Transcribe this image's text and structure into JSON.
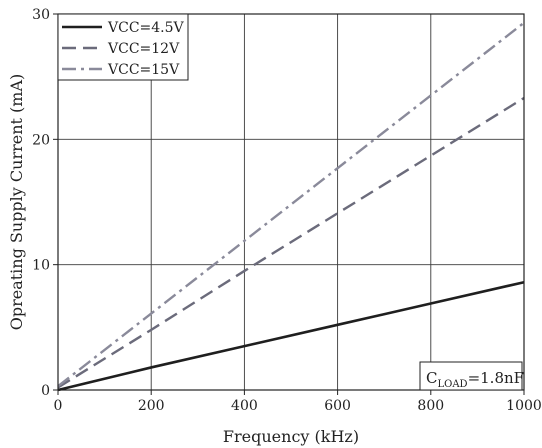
{
  "chart_data": {
    "type": "line",
    "title": "",
    "xlabel": "Frequency (kHz)",
    "ylabel": "Opreating Supply Current (mA)",
    "xlim": [
      0,
      1000
    ],
    "ylim": [
      0,
      30
    ],
    "xticks": [
      0,
      200,
      400,
      600,
      800,
      1000
    ],
    "yticks": [
      0,
      10,
      20,
      30
    ],
    "xtick_labels": [
      "0",
      "200",
      "400",
      "600",
      "800",
      "1000"
    ],
    "ytick_labels": [
      "0",
      "10",
      "20",
      "30"
    ],
    "grid": true,
    "legend_position": "top-left",
    "series": [
      {
        "name": "VCC=4.5V",
        "color": "#1f1f1f",
        "style": "solid",
        "x": [
          0,
          200,
          400,
          600,
          800,
          1000
        ],
        "y": [
          0.0,
          1.8,
          3.5,
          5.2,
          6.9,
          8.6
        ]
      },
      {
        "name": "VCC=12V",
        "color": "#6b6b7b",
        "style": "dashed",
        "x": [
          0,
          200,
          400,
          600,
          800,
          1000
        ],
        "y": [
          0.2,
          4.8,
          9.5,
          14.1,
          18.7,
          23.3
        ]
      },
      {
        "name": "VCC=15V",
        "color": "#8a8a9a",
        "style": "dashdot",
        "x": [
          0,
          200,
          400,
          600,
          800,
          1000
        ],
        "y": [
          0.3,
          6.1,
          11.9,
          17.7,
          23.5,
          29.3
        ]
      }
    ],
    "annotation": {
      "main": "C",
      "sub": "LOAD",
      "rest": "=1.8nF",
      "position": "bottom-right"
    }
  }
}
